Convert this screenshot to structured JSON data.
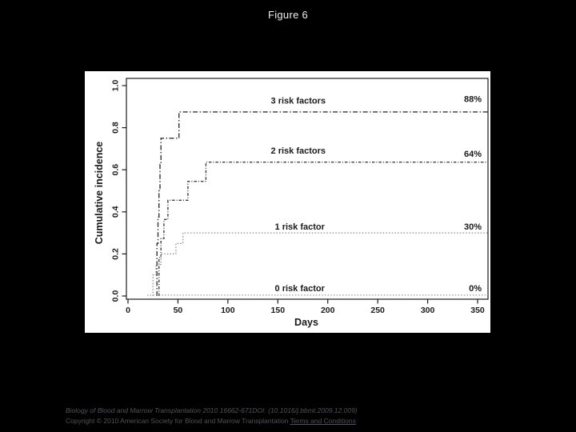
{
  "slide": {
    "title": "Figure 6"
  },
  "colors": {
    "background": "#000000",
    "panel": "#ffffff",
    "title_text": "#efefef",
    "footer_text": "#52525c",
    "axis": "#1c1c1c",
    "label_text": "#1a1a1a"
  },
  "footer": {
    "line1": "Biology of Blood and Marrow Transplantation 2010 16662-671DOI: (10.1016/j.bbmt.2009.12.009)",
    "line2_prefix": "Copyright © 2010 American Society for Blood and Marrow Transplantation ",
    "terms_link": "Terms and Conditions"
  },
  "chart_data": {
    "type": "line",
    "variant": "step-cumulative-incidence",
    "title": "",
    "xlabel": "Days",
    "ylabel": "Cumulative incidence",
    "xlim": [
      0,
      360
    ],
    "ylim": [
      0,
      1.0
    ],
    "xticks": [
      0,
      50,
      100,
      150,
      200,
      250,
      300,
      350
    ],
    "yticks": [
      "0.0",
      "0.2",
      "0.4",
      "0.6",
      "0.8",
      "1.0"
    ],
    "grid": false,
    "legend_position": "inline-labels",
    "series": [
      {
        "name": "3 risk factors",
        "end_label": "88%",
        "final_value": 0.875,
        "color": "#333333",
        "dash": "6 2.5 1.5 2.5",
        "width": 1.4,
        "steps": [
          [
            29,
            0.125
          ],
          [
            30,
            0.25
          ],
          [
            31,
            0.375
          ],
          [
            32,
            0.5
          ],
          [
            33,
            0.625
          ],
          [
            51,
            0.75
          ],
          [
            95,
            0.875
          ]
        ]
      },
      {
        "name": "2 risk factors",
        "end_label": "64%",
        "final_value": 0.636,
        "color": "#3d3d3d",
        "dash": "3.5 2 1 2",
        "width": 1.4,
        "steps": [
          [
            31,
            0.091
          ],
          [
            33,
            0.182
          ],
          [
            36,
            0.273
          ],
          [
            40,
            0.364
          ],
          [
            60,
            0.455
          ],
          [
            78,
            0.545
          ],
          [
            118,
            0.636
          ]
        ]
      },
      {
        "name": "1 risk factor",
        "end_label": "30%",
        "final_value": 0.3,
        "color": "#8c8c8c",
        "dash": "1.5 2.2",
        "width": 1.3,
        "steps": [
          [
            25,
            0.05
          ],
          [
            28,
            0.1
          ],
          [
            33,
            0.15
          ],
          [
            48,
            0.2
          ],
          [
            55,
            0.25
          ],
          [
            56,
            0.3
          ]
        ]
      },
      {
        "name": "0 risk factor",
        "end_label": "0%",
        "final_value": 0.0,
        "color": "#999999",
        "dash": "1.5 2.2",
        "width": 1.2,
        "steps": [
          [
            20,
            0.004
          ]
        ]
      }
    ],
    "annotations": [
      {
        "text": "3 risk factors",
        "day": 143,
        "value": 0.915,
        "anchor": "start",
        "weight": 600
      },
      {
        "text": "88%",
        "day": 354,
        "value": 0.922,
        "anchor": "end",
        "weight": 700
      },
      {
        "text": "2 risk factors",
        "day": 143,
        "value": 0.676,
        "anchor": "start",
        "weight": 600
      },
      {
        "text": "64%",
        "day": 354,
        "value": 0.662,
        "anchor": "end",
        "weight": 700
      },
      {
        "text": "1 risk factor",
        "day": 147,
        "value": 0.315,
        "anchor": "start",
        "weight": 600
      },
      {
        "text": "30%",
        "day": 354,
        "value": 0.315,
        "anchor": "end",
        "weight": 700
      },
      {
        "text": "0 risk factor",
        "day": 147,
        "value": 0.022,
        "anchor": "start",
        "weight": 600
      },
      {
        "text": "0%",
        "day": 354,
        "value": 0.022,
        "anchor": "end",
        "weight": 700
      }
    ]
  }
}
